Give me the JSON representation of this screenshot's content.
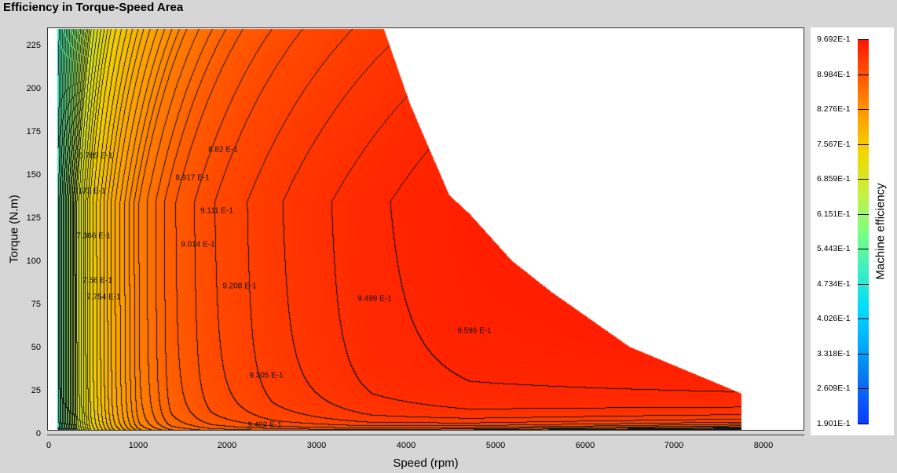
{
  "title": "Efficiency in Torque-Speed Area",
  "chart_data": {
    "type": "heatmap",
    "subtype": "contour",
    "title": "Efficiency in Torque-Speed Area",
    "xlabel": "Speed (rpm)",
    "ylabel": "Torque (N.m)",
    "xlim": [
      0,
      8450
    ],
    "ylim": [
      0,
      235
    ],
    "x_ticks": [
      "0",
      "1000",
      "2000",
      "3000",
      "4000",
      "5000",
      "6000",
      "7000",
      "8000"
    ],
    "y_ticks": [
      "0",
      "25",
      "50",
      "75",
      "100",
      "125",
      "150",
      "175",
      "200",
      "225"
    ],
    "grid": false,
    "colorbar": {
      "label": "Machine efficiency",
      "ticks": [
        "9.692E-1",
        "8.984E-1",
        "8.276E-1",
        "7.567E-1",
        "6.859E-1",
        "6.151E-1",
        "5.443E-1",
        "4.734E-1",
        "4.026E-1",
        "3.318E-1",
        "2.609E-1",
        "1.901E-1"
      ],
      "range": [
        0.1901,
        0.9692
      ],
      "colors": [
        "#0a3cff",
        "#0a6cf0",
        "#00a8f8",
        "#00dcff",
        "#3cf0c0",
        "#7cff80",
        "#c8f040",
        "#f0d800",
        "#ffa000",
        "#ff5a00",
        "#ff1400"
      ]
    },
    "contour_labels": [
      "6.785 E-1",
      "7.172 E-1",
      "7.366 E-1",
      "7.56 E-1",
      "7.754 E-1",
      "8.82 E-1",
      "8.917 E-1",
      "9.014 E-1",
      "9.111 E-1",
      "9.208 E-1",
      "9.305 E-1",
      "9.402 E-1",
      "9.499 E-1",
      "9.596 E-1"
    ],
    "operating_envelope": {
      "speed": [
        3740,
        4030,
        4270,
        4470,
        4700,
        5170,
        5610,
        6490,
        7740,
        7740
      ],
      "torque": [
        235,
        192,
        163,
        139,
        128,
        101,
        83,
        51,
        24,
        2
      ]
    }
  }
}
